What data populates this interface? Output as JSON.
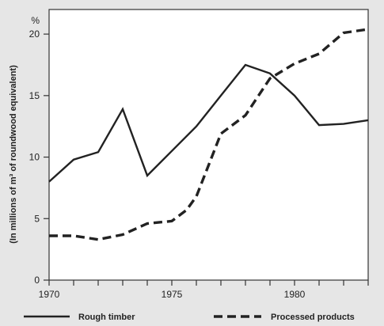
{
  "chart_data": {
    "type": "line",
    "ylabel": "(In millions of m³ of roundwood equivalent)",
    "y_unit": "%",
    "xlim": [
      1970,
      1983
    ],
    "ylim": [
      0,
      20
    ],
    "x_ticks": [
      1970,
      1971,
      1972,
      1973,
      1974,
      1975,
      1976,
      1977,
      1978,
      1979,
      1980,
      1981,
      1982,
      1983
    ],
    "x_tick_labels": [
      "1970",
      "1975",
      "1980"
    ],
    "y_ticks": [
      0,
      5,
      10,
      15,
      20
    ],
    "y_tick_labels": [
      "0",
      "5",
      "10",
      "15",
      "20"
    ],
    "grid": false,
    "legend_position": "bottom",
    "series": [
      {
        "name": "Rough timber",
        "style": "solid",
        "color": "#222222",
        "x": [
          1970,
          1971,
          1972,
          1973,
          1974,
          1975,
          1976,
          1977,
          1978,
          1979,
          1980,
          1981,
          1982,
          1983
        ],
        "y": [
          8.0,
          9.8,
          10.4,
          13.9,
          8.5,
          10.5,
          12.5,
          15.0,
          17.5,
          16.8,
          15.0,
          12.6,
          12.7,
          13.0
        ]
      },
      {
        "name": "Processed products",
        "style": "dashed",
        "color": "#222222",
        "x": [
          1970,
          1971,
          1972,
          1973,
          1974,
          1975,
          1975.6,
          1976,
          1977,
          1978,
          1979,
          1980,
          1981,
          1982,
          1983
        ],
        "y": [
          3.6,
          3.6,
          3.3,
          3.7,
          4.6,
          4.8,
          5.7,
          6.8,
          11.9,
          13.4,
          16.4,
          17.6,
          18.4,
          20.1,
          20.4
        ]
      }
    ]
  }
}
